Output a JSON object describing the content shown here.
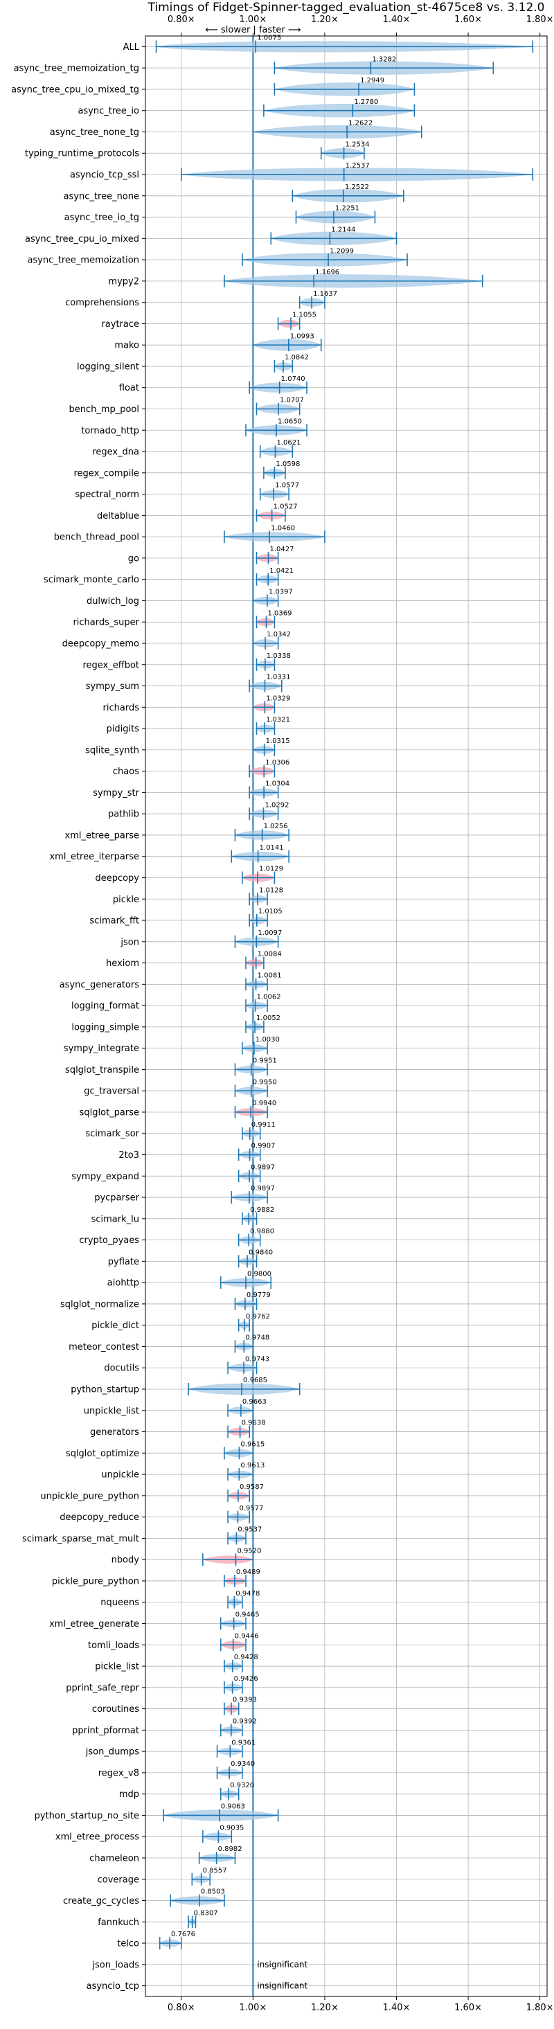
{
  "chart_data": {
    "type": "violin",
    "title": "Timings of Fidget-Spinner-tagged_evaluation_st-4675ce8 vs. 3.12.0",
    "direction_label": "⟵ slower | faster ⟶",
    "x_ticks": [
      "0.80×",
      "1.00×",
      "1.20×",
      "1.40×",
      "1.60×",
      "1.80×"
    ],
    "xlim": [
      0.7,
      1.82
    ],
    "grid": true,
    "colors": {
      "violin": "#a6c8e6",
      "violin_highlight": "#f4a6b2",
      "line": "#1f77b4",
      "grid": "#b0b0b0"
    },
    "benchmarks": [
      {
        "name": "ALL",
        "value": "1.0075",
        "median": 1.0075,
        "min": 0.73,
        "max": 1.78,
        "spread": 0.08,
        "highlight": false
      },
      {
        "name": "async_tree_memoization_tg",
        "value": "1.3282",
        "median": 1.3282,
        "min": 1.06,
        "max": 1.67,
        "spread": 0.2,
        "highlight": false
      },
      {
        "name": "async_tree_cpu_io_mixed_tg",
        "value": "1.2949",
        "median": 1.2949,
        "min": 1.06,
        "max": 1.45,
        "spread": 0.15,
        "highlight": false
      },
      {
        "name": "async_tree_io",
        "value": "1.2780",
        "median": 1.278,
        "min": 1.03,
        "max": 1.45,
        "spread": 0.16,
        "highlight": false
      },
      {
        "name": "async_tree_none_tg",
        "value": "1.2622",
        "median": 1.2622,
        "min": 1.0,
        "max": 1.47,
        "spread": 0.17,
        "highlight": false
      },
      {
        "name": "typing_runtime_protocols",
        "value": "1.2534",
        "median": 1.2534,
        "min": 1.19,
        "max": 1.31,
        "spread": 0.06,
        "highlight": false
      },
      {
        "name": "asyncio_tcp_ssl",
        "value": "1.2537",
        "median": 1.2537,
        "min": 0.8,
        "max": 1.78,
        "spread": 0.4,
        "highlight": false
      },
      {
        "name": "async_tree_none",
        "value": "1.2522",
        "median": 1.2522,
        "min": 1.11,
        "max": 1.42,
        "spread": 0.12,
        "highlight": false
      },
      {
        "name": "async_tree_io_tg",
        "value": "1.2251",
        "median": 1.2251,
        "min": 1.12,
        "max": 1.34,
        "spread": 0.1,
        "highlight": false
      },
      {
        "name": "async_tree_cpu_io_mixed",
        "value": "1.2144",
        "median": 1.2144,
        "min": 1.05,
        "max": 1.4,
        "spread": 0.14,
        "highlight": false
      },
      {
        "name": "async_tree_memoization",
        "value": "1.2099",
        "median": 1.2099,
        "min": 0.97,
        "max": 1.43,
        "spread": 0.18,
        "highlight": false
      },
      {
        "name": "mypy2",
        "value": "1.1696",
        "median": 1.1696,
        "min": 0.92,
        "max": 1.64,
        "spread": 0.22,
        "highlight": false
      },
      {
        "name": "comprehensions",
        "value": "1.1637",
        "median": 1.1637,
        "min": 1.13,
        "max": 1.2,
        "spread": 0.04,
        "highlight": false
      },
      {
        "name": "raytrace",
        "value": "1.1055",
        "median": 1.1055,
        "min": 1.07,
        "max": 1.13,
        "spread": 0.03,
        "highlight": true
      },
      {
        "name": "mako",
        "value": "1.0993",
        "median": 1.0993,
        "min": 1.0,
        "max": 1.19,
        "spread": 0.09,
        "highlight": false
      },
      {
        "name": "logging_silent",
        "value": "1.0842",
        "median": 1.0842,
        "min": 1.06,
        "max": 1.11,
        "spread": 0.03,
        "highlight": false
      },
      {
        "name": "float",
        "value": "1.0740",
        "median": 1.074,
        "min": 0.99,
        "max": 1.15,
        "spread": 0.06,
        "highlight": false
      },
      {
        "name": "bench_mp_pool",
        "value": "1.0707",
        "median": 1.0707,
        "min": 1.01,
        "max": 1.13,
        "spread": 0.05,
        "highlight": false
      },
      {
        "name": "tornado_http",
        "value": "1.0650",
        "median": 1.065,
        "min": 0.98,
        "max": 1.15,
        "spread": 0.06,
        "highlight": false
      },
      {
        "name": "regex_dna",
        "value": "1.0621",
        "median": 1.0621,
        "min": 1.02,
        "max": 1.11,
        "spread": 0.04,
        "highlight": false
      },
      {
        "name": "regex_compile",
        "value": "1.0598",
        "median": 1.0598,
        "min": 1.03,
        "max": 1.09,
        "spread": 0.03,
        "highlight": false
      },
      {
        "name": "spectral_norm",
        "value": "1.0577",
        "median": 1.0577,
        "min": 1.02,
        "max": 1.1,
        "spread": 0.03,
        "highlight": false
      },
      {
        "name": "deltablue",
        "value": "1.0527",
        "median": 1.0527,
        "min": 1.01,
        "max": 1.09,
        "spread": 0.03,
        "highlight": true
      },
      {
        "name": "bench_thread_pool",
        "value": "1.0460",
        "median": 1.046,
        "min": 0.92,
        "max": 1.2,
        "spread": 0.05,
        "highlight": false
      },
      {
        "name": "go",
        "value": "1.0427",
        "median": 1.0427,
        "min": 1.01,
        "max": 1.07,
        "spread": 0.03,
        "highlight": true
      },
      {
        "name": "scimark_monte_carlo",
        "value": "1.0421",
        "median": 1.0421,
        "min": 1.01,
        "max": 1.07,
        "spread": 0.03,
        "highlight": false
      },
      {
        "name": "dulwich_log",
        "value": "1.0397",
        "median": 1.0397,
        "min": 1.0,
        "max": 1.07,
        "spread": 0.03,
        "highlight": false
      },
      {
        "name": "richards_super",
        "value": "1.0369",
        "median": 1.0369,
        "min": 1.01,
        "max": 1.06,
        "spread": 0.03,
        "highlight": true
      },
      {
        "name": "deepcopy_memo",
        "value": "1.0342",
        "median": 1.0342,
        "min": 1.0,
        "max": 1.07,
        "spread": 0.03,
        "highlight": false
      },
      {
        "name": "regex_effbot",
        "value": "1.0338",
        "median": 1.0338,
        "min": 1.01,
        "max": 1.06,
        "spread": 0.03,
        "highlight": false
      },
      {
        "name": "sympy_sum",
        "value": "1.0331",
        "median": 1.0331,
        "min": 0.99,
        "max": 1.08,
        "spread": 0.03,
        "highlight": false
      },
      {
        "name": "richards",
        "value": "1.0329",
        "median": 1.0329,
        "min": 1.0,
        "max": 1.06,
        "spread": 0.03,
        "highlight": true
      },
      {
        "name": "pidigits",
        "value": "1.0321",
        "median": 1.0321,
        "min": 1.01,
        "max": 1.06,
        "spread": 0.03,
        "highlight": false
      },
      {
        "name": "sqlite_synth",
        "value": "1.0315",
        "median": 1.0315,
        "min": 1.0,
        "max": 1.06,
        "spread": 0.03,
        "highlight": false
      },
      {
        "name": "chaos",
        "value": "1.0306",
        "median": 1.0306,
        "min": 0.99,
        "max": 1.06,
        "spread": 0.03,
        "highlight": true
      },
      {
        "name": "sympy_str",
        "value": "1.0304",
        "median": 1.0304,
        "min": 0.99,
        "max": 1.07,
        "spread": 0.03,
        "highlight": false
      },
      {
        "name": "pathlib",
        "value": "1.0292",
        "median": 1.0292,
        "min": 0.99,
        "max": 1.07,
        "spread": 0.03,
        "highlight": false
      },
      {
        "name": "xml_etree_parse",
        "value": "1.0256",
        "median": 1.0256,
        "min": 0.95,
        "max": 1.1,
        "spread": 0.05,
        "highlight": false
      },
      {
        "name": "xml_etree_iterparse",
        "value": "1.0141",
        "median": 1.0141,
        "min": 0.94,
        "max": 1.1,
        "spread": 0.05,
        "highlight": false
      },
      {
        "name": "deepcopy",
        "value": "1.0129",
        "median": 1.0129,
        "min": 0.97,
        "max": 1.06,
        "spread": 0.03,
        "highlight": true
      },
      {
        "name": "pickle",
        "value": "1.0128",
        "median": 1.0128,
        "min": 0.99,
        "max": 1.04,
        "spread": 0.02,
        "highlight": false
      },
      {
        "name": "scimark_fft",
        "value": "1.0105",
        "median": 1.0105,
        "min": 0.99,
        "max": 1.04,
        "spread": 0.02,
        "highlight": false
      },
      {
        "name": "json",
        "value": "1.0097",
        "median": 1.0097,
        "min": 0.95,
        "max": 1.07,
        "spread": 0.04,
        "highlight": false
      },
      {
        "name": "hexiom",
        "value": "1.0084",
        "median": 1.0084,
        "min": 0.98,
        "max": 1.03,
        "spread": 0.02,
        "highlight": true
      },
      {
        "name": "async_generators",
        "value": "1.0081",
        "median": 1.0081,
        "min": 0.98,
        "max": 1.04,
        "spread": 0.02,
        "highlight": false
      },
      {
        "name": "logging_format",
        "value": "1.0062",
        "median": 1.0062,
        "min": 0.98,
        "max": 1.04,
        "spread": 0.02,
        "highlight": false
      },
      {
        "name": "logging_simple",
        "value": "1.0052",
        "median": 1.0052,
        "min": 0.98,
        "max": 1.03,
        "spread": 0.02,
        "highlight": false
      },
      {
        "name": "sympy_integrate",
        "value": "1.0030",
        "median": 1.003,
        "min": 0.97,
        "max": 1.04,
        "spread": 0.02,
        "highlight": false
      },
      {
        "name": "sqlglot_transpile",
        "value": "0.9951",
        "median": 0.9951,
        "min": 0.95,
        "max": 1.04,
        "spread": 0.03,
        "highlight": false
      },
      {
        "name": "gc_traversal",
        "value": "0.9950",
        "median": 0.995,
        "min": 0.95,
        "max": 1.04,
        "spread": 0.03,
        "highlight": false
      },
      {
        "name": "sqlglot_parse",
        "value": "0.9940",
        "median": 0.994,
        "min": 0.95,
        "max": 1.04,
        "spread": 0.03,
        "highlight": true
      },
      {
        "name": "scimark_sor",
        "value": "0.9911",
        "median": 0.9911,
        "min": 0.97,
        "max": 1.02,
        "spread": 0.02,
        "highlight": false
      },
      {
        "name": "2to3",
        "value": "0.9907",
        "median": 0.9907,
        "min": 0.96,
        "max": 1.02,
        "spread": 0.02,
        "highlight": false
      },
      {
        "name": "sympy_expand",
        "value": "0.9897",
        "median": 0.9897,
        "min": 0.96,
        "max": 1.02,
        "spread": 0.02,
        "highlight": false
      },
      {
        "name": "pycparser",
        "value": "0.9897",
        "median": 0.9897,
        "min": 0.94,
        "max": 1.04,
        "spread": 0.03,
        "highlight": false
      },
      {
        "name": "scimark_lu",
        "value": "0.9882",
        "median": 0.9882,
        "min": 0.97,
        "max": 1.01,
        "spread": 0.02,
        "highlight": false
      },
      {
        "name": "crypto_pyaes",
        "value": "0.9880",
        "median": 0.988,
        "min": 0.96,
        "max": 1.02,
        "spread": 0.02,
        "highlight": false
      },
      {
        "name": "pyflate",
        "value": "0.9840",
        "median": 0.984,
        "min": 0.96,
        "max": 1.01,
        "spread": 0.02,
        "highlight": false
      },
      {
        "name": "aiohttp",
        "value": "0.9800",
        "median": 0.98,
        "min": 0.91,
        "max": 1.05,
        "spread": 0.04,
        "highlight": false
      },
      {
        "name": "sqlglot_normalize",
        "value": "0.9779",
        "median": 0.9779,
        "min": 0.95,
        "max": 1.01,
        "spread": 0.02,
        "highlight": false
      },
      {
        "name": "pickle_dict",
        "value": "0.9762",
        "median": 0.9762,
        "min": 0.96,
        "max": 0.99,
        "spread": 0.02,
        "highlight": false
      },
      {
        "name": "meteor_contest",
        "value": "0.9748",
        "median": 0.9748,
        "min": 0.95,
        "max": 1.0,
        "spread": 0.02,
        "highlight": false
      },
      {
        "name": "docutils",
        "value": "0.9743",
        "median": 0.9743,
        "min": 0.93,
        "max": 1.01,
        "spread": 0.03,
        "highlight": false
      },
      {
        "name": "python_startup",
        "value": "0.9685",
        "median": 0.9685,
        "min": 0.82,
        "max": 1.13,
        "spread": 0.08,
        "highlight": false
      },
      {
        "name": "unpickle_list",
        "value": "0.9663",
        "median": 0.9663,
        "min": 0.93,
        "max": 1.0,
        "spread": 0.02,
        "highlight": false
      },
      {
        "name": "generators",
        "value": "0.9638",
        "median": 0.9638,
        "min": 0.93,
        "max": 0.99,
        "spread": 0.03,
        "highlight": true
      },
      {
        "name": "sqlglot_optimize",
        "value": "0.9615",
        "median": 0.9615,
        "min": 0.92,
        "max": 1.0,
        "spread": 0.03,
        "highlight": false
      },
      {
        "name": "unpickle",
        "value": "0.9613",
        "median": 0.9613,
        "min": 0.93,
        "max": 1.0,
        "spread": 0.02,
        "highlight": false
      },
      {
        "name": "unpickle_pure_python",
        "value": "0.9587",
        "median": 0.9587,
        "min": 0.93,
        "max": 0.99,
        "spread": 0.02,
        "highlight": true
      },
      {
        "name": "deepcopy_reduce",
        "value": "0.9577",
        "median": 0.9577,
        "min": 0.93,
        "max": 0.99,
        "spread": 0.02,
        "highlight": false
      },
      {
        "name": "scimark_sparse_mat_mult",
        "value": "0.9537",
        "median": 0.9537,
        "min": 0.93,
        "max": 0.98,
        "spread": 0.02,
        "highlight": false
      },
      {
        "name": "nbody",
        "value": "0.9520",
        "median": 0.952,
        "min": 0.86,
        "max": 1.0,
        "spread": 0.03,
        "highlight": true
      },
      {
        "name": "pickle_pure_python",
        "value": "0.9489",
        "median": 0.9489,
        "min": 0.92,
        "max": 0.98,
        "spread": 0.02,
        "highlight": true
      },
      {
        "name": "nqueens",
        "value": "0.9478",
        "median": 0.9478,
        "min": 0.93,
        "max": 0.97,
        "spread": 0.02,
        "highlight": false
      },
      {
        "name": "xml_etree_generate",
        "value": "0.9465",
        "median": 0.9465,
        "min": 0.91,
        "max": 0.98,
        "spread": 0.02,
        "highlight": false
      },
      {
        "name": "tomli_loads",
        "value": "0.9446",
        "median": 0.9446,
        "min": 0.91,
        "max": 0.98,
        "spread": 0.03,
        "highlight": true
      },
      {
        "name": "pickle_list",
        "value": "0.9428",
        "median": 0.9428,
        "min": 0.92,
        "max": 0.97,
        "spread": 0.02,
        "highlight": false
      },
      {
        "name": "pprint_safe_repr",
        "value": "0.9426",
        "median": 0.9426,
        "min": 0.92,
        "max": 0.97,
        "spread": 0.02,
        "highlight": false
      },
      {
        "name": "coroutines",
        "value": "0.9393",
        "median": 0.9393,
        "min": 0.92,
        "max": 0.96,
        "spread": 0.03,
        "highlight": true
      },
      {
        "name": "pprint_pformat",
        "value": "0.9392",
        "median": 0.9392,
        "min": 0.91,
        "max": 0.97,
        "spread": 0.02,
        "highlight": false
      },
      {
        "name": "json_dumps",
        "value": "0.9361",
        "median": 0.9361,
        "min": 0.9,
        "max": 0.97,
        "spread": 0.02,
        "highlight": false
      },
      {
        "name": "regex_v8",
        "value": "0.9340",
        "median": 0.934,
        "min": 0.9,
        "max": 0.97,
        "spread": 0.02,
        "highlight": false
      },
      {
        "name": "mdp",
        "value": "0.9320",
        "median": 0.932,
        "min": 0.91,
        "max": 0.96,
        "spread": 0.02,
        "highlight": false
      },
      {
        "name": "python_startup_no_site",
        "value": "0.9063",
        "median": 0.9063,
        "min": 0.75,
        "max": 1.07,
        "spread": 0.08,
        "highlight": false
      },
      {
        "name": "xml_etree_process",
        "value": "0.9035",
        "median": 0.9035,
        "min": 0.86,
        "max": 0.94,
        "spread": 0.03,
        "highlight": false
      },
      {
        "name": "chameleon",
        "value": "0.8982",
        "median": 0.8982,
        "min": 0.85,
        "max": 0.95,
        "spread": 0.03,
        "highlight": false
      },
      {
        "name": "coverage",
        "value": "0.8557",
        "median": 0.8557,
        "min": 0.83,
        "max": 0.88,
        "spread": 0.02,
        "highlight": false
      },
      {
        "name": "create_gc_cycles",
        "value": "0.8503",
        "median": 0.8503,
        "min": 0.77,
        "max": 0.92,
        "spread": 0.04,
        "highlight": false
      },
      {
        "name": "fannkuch",
        "value": "0.8307",
        "median": 0.8307,
        "min": 0.82,
        "max": 0.84,
        "spread": 0.01,
        "highlight": false
      },
      {
        "name": "telco",
        "value": "0.7676",
        "median": 0.7676,
        "min": 0.74,
        "max": 0.8,
        "spread": 0.02,
        "highlight": false
      },
      {
        "name": "json_loads",
        "value": "insignificant",
        "median": null,
        "min": null,
        "max": null,
        "spread": 0,
        "highlight": false
      },
      {
        "name": "asyncio_tcp",
        "value": "insignificant",
        "median": null,
        "min": null,
        "max": null,
        "spread": 0,
        "highlight": false
      }
    ]
  }
}
